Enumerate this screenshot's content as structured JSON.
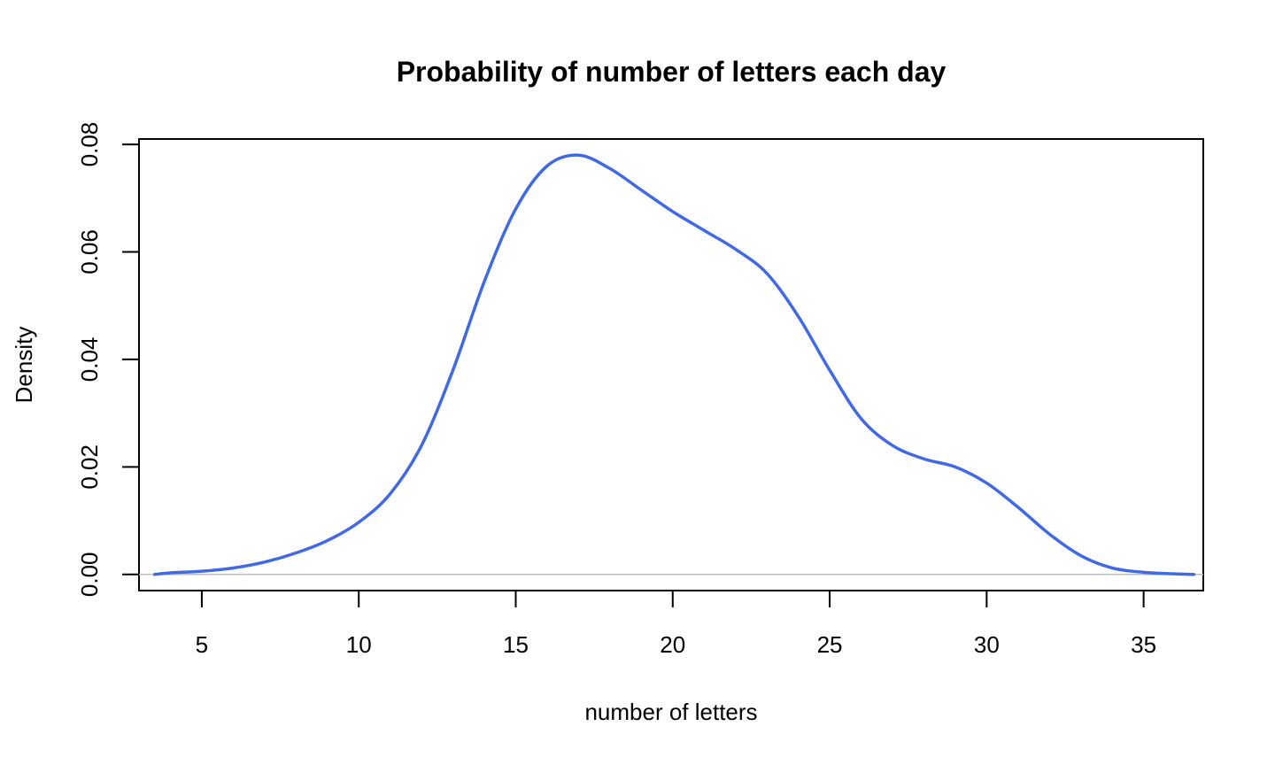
{
  "chart_data": {
    "type": "line",
    "title": "Probability of number of letters each day",
    "xlabel": "number of letters",
    "ylabel": "Density",
    "xlim": [
      3.0,
      36.9
    ],
    "ylim": [
      -0.003,
      0.081
    ],
    "x_ticks": [
      5,
      10,
      15,
      20,
      25,
      30,
      35
    ],
    "x_tick_labels": [
      "5",
      "10",
      "15",
      "20",
      "25",
      "30",
      "35"
    ],
    "y_ticks": [
      0.0,
      0.02,
      0.04,
      0.06,
      0.08
    ],
    "y_tick_labels": [
      "0.00",
      "0.02",
      "0.04",
      "0.06",
      "0.08"
    ],
    "grid": false,
    "baseline": 0.0,
    "series": [
      {
        "color": "#4169E1",
        "x": [
          3.5,
          4.0,
          5.0,
          6.0,
          7.0,
          8.0,
          9.0,
          10.0,
          11.0,
          12.0,
          13.0,
          14.0,
          15.0,
          16.0,
          17.0,
          18.0,
          19.0,
          20.0,
          21.0,
          22.0,
          23.0,
          24.0,
          25.0,
          26.0,
          27.0,
          28.0,
          29.0,
          30.0,
          31.0,
          32.0,
          33.0,
          34.0,
          35.0,
          36.0,
          36.6
        ],
        "y": [
          0.0,
          0.0003,
          0.0006,
          0.0012,
          0.0023,
          0.004,
          0.0063,
          0.0097,
          0.015,
          0.024,
          0.038,
          0.0545,
          0.068,
          0.076,
          0.078,
          0.0755,
          0.0715,
          0.0675,
          0.064,
          0.0605,
          0.056,
          0.048,
          0.038,
          0.029,
          0.024,
          0.0215,
          0.02,
          0.017,
          0.0125,
          0.0075,
          0.0035,
          0.0012,
          0.0004,
          0.0001,
          0.0
        ]
      }
    ]
  }
}
